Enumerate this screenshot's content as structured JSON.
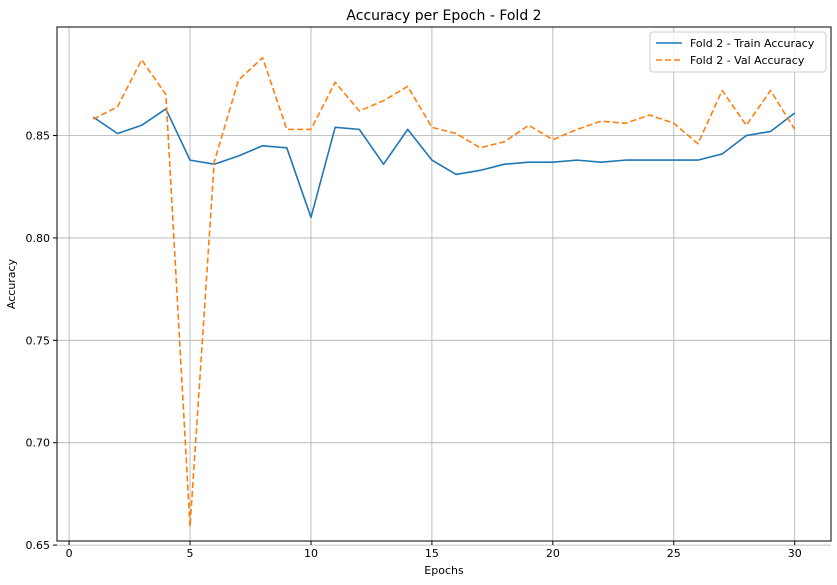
{
  "chart_data": {
    "type": "line",
    "title": "Accuracy per Epoch - Fold 2",
    "xlabel": "Epochs",
    "ylabel": "Accuracy",
    "xlim": [
      -0.5,
      31.5
    ],
    "ylim": [
      0.652,
      0.903
    ],
    "xticks": [
      0,
      5,
      10,
      15,
      20,
      25,
      30
    ],
    "yticks": [
      0.65,
      0.7,
      0.75,
      0.8,
      0.85
    ],
    "xtick_labels": [
      "0",
      "5",
      "10",
      "15",
      "20",
      "25",
      "30"
    ],
    "ytick_labels": [
      "0.65",
      "0.70",
      "0.75",
      "0.80",
      "0.85"
    ],
    "grid": true,
    "legend_position": "top-right",
    "x": [
      1,
      2,
      3,
      4,
      5,
      6,
      7,
      8,
      9,
      10,
      11,
      12,
      13,
      14,
      15,
      16,
      17,
      18,
      19,
      20,
      21,
      22,
      23,
      24,
      25,
      26,
      27,
      28,
      29,
      30
    ],
    "series": [
      {
        "name": "Fold 2 - Train Accuracy",
        "color": "#1f77b4",
        "style": "solid",
        "values": [
          0.859,
          0.851,
          0.855,
          0.863,
          0.838,
          0.836,
          0.84,
          0.845,
          0.844,
          0.81,
          0.854,
          0.853,
          0.836,
          0.853,
          0.838,
          0.831,
          0.833,
          0.836,
          0.837,
          0.837,
          0.838,
          0.837,
          0.838,
          0.838,
          0.838,
          0.838,
          0.841,
          0.85,
          0.852,
          0.861
        ]
      },
      {
        "name": "Fold 2 - Val Accuracy",
        "color": "#ff7f0e",
        "style": "dashed",
        "values": [
          0.858,
          0.864,
          0.887,
          0.87,
          0.659,
          0.837,
          0.877,
          0.888,
          0.853,
          0.853,
          0.876,
          0.862,
          0.867,
          0.874,
          0.854,
          0.851,
          0.844,
          0.847,
          0.855,
          0.848,
          0.853,
          0.857,
          0.856,
          0.86,
          0.856,
          0.846,
          0.872,
          0.855,
          0.872,
          0.853
        ]
      }
    ]
  }
}
